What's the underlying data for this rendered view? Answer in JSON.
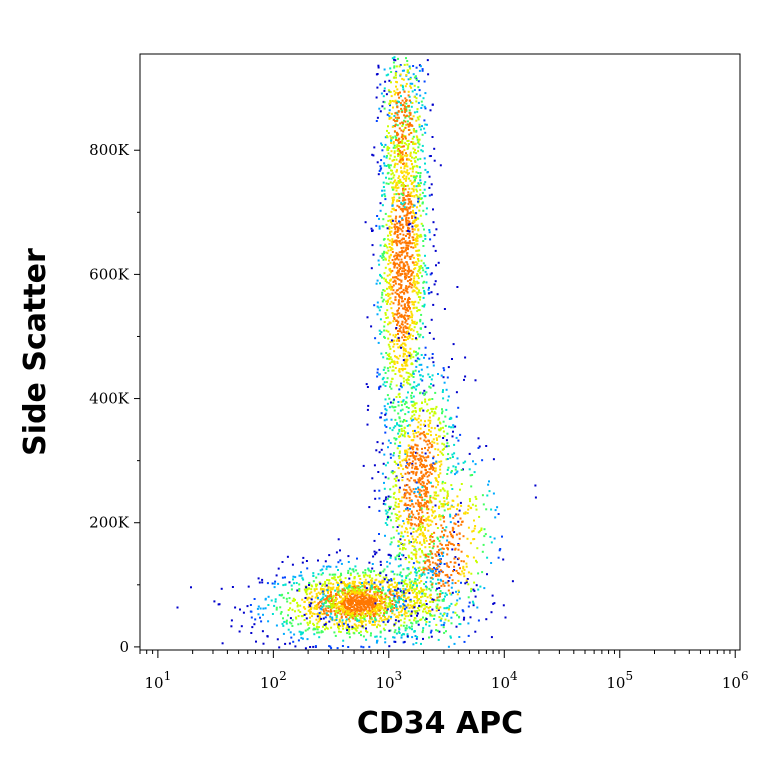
{
  "chart_data": {
    "type": "scatter",
    "subtype": "flow-cytometry-density-dot-plot",
    "title": "",
    "xlabel": "CD34 APC",
    "ylabel": "Side Scatter",
    "x_scale": "log",
    "xlim": [
      7,
      1100000
    ],
    "ylim": [
      -5000,
      955000
    ],
    "x_ticks": [
      {
        "value": 10,
        "base": "10",
        "exp": "1"
      },
      {
        "value": 100,
        "base": "10",
        "exp": "2"
      },
      {
        "value": 1000,
        "base": "10",
        "exp": "3"
      },
      {
        "value": 10000,
        "base": "10",
        "exp": "4"
      },
      {
        "value": 100000,
        "base": "10",
        "exp": "5"
      },
      {
        "value": 1000000,
        "base": "10",
        "exp": "6"
      }
    ],
    "y_ticks": [
      {
        "value": 0,
        "label": "0"
      },
      {
        "value": 200000,
        "label": "200K"
      },
      {
        "value": 400000,
        "label": "400K"
      },
      {
        "value": 600000,
        "label": "600K"
      },
      {
        "value": 800000,
        "label": "800K"
      }
    ],
    "grid": false,
    "legend": "none",
    "density_colormap": [
      "#0000cc",
      "#0044ff",
      "#00aaff",
      "#00e0d0",
      "#40ff60",
      "#c8ff00",
      "#ffdd00",
      "#ff7700",
      "#ff0000"
    ],
    "populations": [
      {
        "x_center": 550,
        "y_center": 72000,
        "density": "highest"
      },
      {
        "x_center": 1300,
        "y_center": 620000,
        "density": "high"
      },
      {
        "x_center": 1800,
        "y_center": 270000,
        "density": "medium"
      }
    ]
  }
}
